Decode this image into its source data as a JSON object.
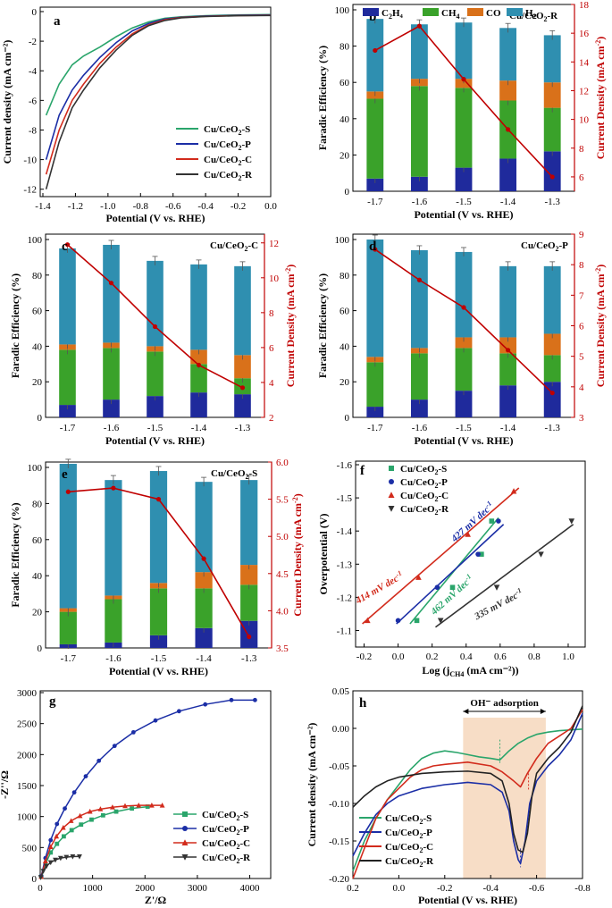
{
  "colors": {
    "c2h4": "#1f2a9c",
    "ch4": "#3aa22a",
    "co": "#d9711a",
    "h2": "#2f8fb0",
    "red": "#c00000",
    "s": "#2aa56b",
    "p": "#1b2ea6",
    "c": "#d22b1c",
    "r": "#333333",
    "shade": "#f7ddc6"
  },
  "chart_data": [
    {
      "id": "a",
      "type": "line",
      "label": "a",
      "xlabel": "Potential (V vs. RHE)",
      "ylabel": "Current density (mA cm⁻²)",
      "xlim": [
        -1.4,
        0.0
      ],
      "ylim": [
        -12.5,
        0.3
      ],
      "xticks": [
        -1.4,
        -1.2,
        -1.0,
        -0.8,
        -0.6,
        -0.4,
        -0.2,
        0.0
      ],
      "yticks": [
        0,
        -2,
        -4,
        -6,
        -8,
        -10,
        -12
      ],
      "legend": [
        "Cu/CeO₂-S",
        "Cu/CeO₂-P",
        "Cu/CeO₂-C",
        "Cu/CeO₂-R"
      ],
      "series": [
        {
          "name": "Cu/CeO₂-S",
          "color": "#2aa56b",
          "x": [
            -1.38,
            -1.3,
            -1.22,
            -1.15,
            -1.05,
            -0.95,
            -0.85,
            -0.75,
            -0.65,
            -0.55,
            -0.4,
            -0.2,
            0.0
          ],
          "y": [
            -7.0,
            -4.9,
            -3.6,
            -3.0,
            -2.4,
            -1.7,
            -1.1,
            -0.7,
            -0.45,
            -0.35,
            -0.28,
            -0.22,
            -0.2
          ]
        },
        {
          "name": "Cu/CeO₂-P",
          "color": "#1b2ea6",
          "x": [
            -1.38,
            -1.3,
            -1.22,
            -1.15,
            -1.05,
            -0.95,
            -0.85,
            -0.75,
            -0.65,
            -0.55,
            -0.4,
            -0.2,
            0.0
          ],
          "y": [
            -10.0,
            -7.0,
            -5.3,
            -4.3,
            -3.1,
            -2.1,
            -1.3,
            -0.8,
            -0.5,
            -0.38,
            -0.3,
            -0.25,
            -0.22
          ]
        },
        {
          "name": "Cu/CeO₂-C",
          "color": "#d22b1c",
          "x": [
            -1.38,
            -1.3,
            -1.22,
            -1.15,
            -1.05,
            -0.95,
            -0.85,
            -0.75,
            -0.65,
            -0.55,
            -0.4,
            -0.2,
            0.0
          ],
          "y": [
            -11.0,
            -8.0,
            -6.0,
            -4.9,
            -3.5,
            -2.4,
            -1.5,
            -0.9,
            -0.55,
            -0.4,
            -0.32,
            -0.27,
            -0.25
          ]
        },
        {
          "name": "Cu/CeO₂-R",
          "color": "#333333",
          "x": [
            -1.38,
            -1.3,
            -1.22,
            -1.15,
            -1.05,
            -0.95,
            -0.85,
            -0.75,
            -0.65,
            -0.55,
            -0.4,
            -0.2,
            0.0
          ],
          "y": [
            -12.0,
            -8.8,
            -6.5,
            -5.3,
            -3.8,
            -2.6,
            -1.6,
            -0.95,
            -0.6,
            -0.42,
            -0.33,
            -0.28,
            -0.26
          ]
        }
      ]
    },
    {
      "id": "b",
      "type": "bar",
      "label": "b",
      "title": "Cu/CeO₂-R",
      "categories": [
        "-1.7",
        "-1.6",
        "-1.5",
        "-1.4",
        "-1.3"
      ],
      "xlabel": "Potential (V vs. RHE)",
      "ylabel": "Faradic Efficiency (%)",
      "y2label": "Current Density (mA cm⁻²)",
      "ylim": [
        0,
        100
      ],
      "yticks": [
        0,
        20,
        40,
        60,
        80,
        100
      ],
      "y2lim": [
        5,
        18
      ],
      "y2ticks": [
        6,
        8,
        10,
        12,
        14,
        16,
        18
      ],
      "legend": [
        "C₂H₄",
        "CH₄",
        "CO",
        "H₂"
      ],
      "series": [
        {
          "name": "C₂H₄",
          "values": [
            7,
            8,
            13,
            18,
            22
          ]
        },
        {
          "name": "CH₄",
          "values": [
            44,
            50,
            44,
            32,
            24
          ]
        },
        {
          "name": "CO",
          "values": [
            4,
            4,
            5,
            11,
            14
          ]
        },
        {
          "name": "H₂",
          "values": [
            40,
            30,
            31,
            29,
            26
          ]
        }
      ],
      "current": [
        14.8,
        16.5,
        12.8,
        9.3,
        6.0
      ]
    },
    {
      "id": "c",
      "type": "bar",
      "label": "c",
      "title": "Cu/CeO₂-C",
      "categories": [
        "-1.7",
        "-1.6",
        "-1.5",
        "-1.4",
        "-1.3"
      ],
      "xlabel": "Potential (V vs. RHE)",
      "ylabel": "Faradic Efficiency (%)",
      "y2label": "Current Density (mA cm⁻²)",
      "ylim": [
        0,
        100
      ],
      "yticks": [
        0,
        20,
        40,
        60,
        80,
        100
      ],
      "y2lim": [
        2,
        12.5
      ],
      "y2ticks": [
        2,
        4,
        6,
        8,
        10,
        12
      ],
      "series": [
        {
          "name": "C₂H₄",
          "values": [
            7,
            10,
            12,
            14,
            13
          ]
        },
        {
          "name": "CH₄",
          "values": [
            31,
            29,
            25,
            16,
            9
          ]
        },
        {
          "name": "CO",
          "values": [
            3,
            3,
            3,
            8,
            13
          ]
        },
        {
          "name": "H₂",
          "values": [
            54,
            55,
            48,
            48,
            50
          ]
        }
      ],
      "current": [
        11.9,
        9.7,
        7.2,
        5.0,
        3.7
      ]
    },
    {
      "id": "d",
      "type": "bar",
      "label": "d",
      "title": "Cu/CeO₂-P",
      "categories": [
        "-1.7",
        "-1.6",
        "-1.5",
        "-1.4",
        "-1.3"
      ],
      "xlabel": "Potential (V vs. RHE)",
      "ylabel": "Faradic Efficiency (%)",
      "y2label": "Current Density (mA cm⁻²)",
      "ylim": [
        0,
        100
      ],
      "yticks": [
        0,
        20,
        40,
        60,
        80,
        100
      ],
      "y2lim": [
        3,
        9
      ],
      "y2ticks": [
        3,
        4,
        5,
        6,
        7,
        8,
        9
      ],
      "series": [
        {
          "name": "C₂H₄",
          "values": [
            6,
            10,
            15,
            18,
            20
          ]
        },
        {
          "name": "CH₄",
          "values": [
            25,
            26,
            24,
            18,
            15
          ]
        },
        {
          "name": "CO",
          "values": [
            3,
            3,
            6,
            9,
            12
          ]
        },
        {
          "name": "H₂",
          "values": [
            66,
            55,
            48,
            40,
            38
          ]
        }
      ],
      "current": [
        8.5,
        7.5,
        6.6,
        5.2,
        3.8
      ]
    },
    {
      "id": "e",
      "type": "bar",
      "label": "e",
      "title": "Cu/CeO₂-S",
      "categories": [
        "-1.7",
        "-1.6",
        "-1.5",
        "-1.4",
        "-1.3"
      ],
      "xlabel": "Potential (V vs. RHE)",
      "ylabel": "Faradic Efficiency (%)",
      "y2label": "Current Density (mA cm⁻²)",
      "ylim": [
        0,
        100
      ],
      "yticks": [
        0,
        20,
        40,
        60,
        80,
        100
      ],
      "y2lim": [
        3.5,
        6.0
      ],
      "y2ticks": [
        3.5,
        4.0,
        4.5,
        5.0,
        5.5,
        6.0
      ],
      "series": [
        {
          "name": "C₂H₄",
          "values": [
            2,
            3,
            7,
            11,
            15
          ]
        },
        {
          "name": "CH₄",
          "values": [
            18,
            24,
            26,
            22,
            20
          ]
        },
        {
          "name": "CO",
          "values": [
            2,
            2,
            3,
            9,
            11
          ]
        },
        {
          "name": "H₂",
          "values": [
            80,
            64,
            62,
            50,
            47
          ]
        }
      ],
      "current": [
        5.6,
        5.65,
        5.5,
        4.7,
        3.65
      ]
    },
    {
      "id": "f",
      "type": "scatter",
      "label": "f",
      "xlabel": "Log (j",
      "xlabel_sub": "CH4",
      "xlabel_end": " (mA cm⁻²))",
      "ylabel": "Overpotential (V)",
      "xlim": [
        -0.25,
        1.1
      ],
      "ylim": [
        -1.05,
        -1.6
      ],
      "xticks": [
        -0.2,
        0.0,
        0.2,
        0.4,
        0.6,
        0.8,
        1.0
      ],
      "yticks": [
        -1.1,
        -1.2,
        -1.3,
        -1.4,
        -1.5,
        -1.6
      ],
      "legend": [
        "Cu/CeO₂-S",
        "Cu/CeO₂-P",
        "Cu/CeO₂-C",
        "Cu/CeO₂-R"
      ],
      "series": [
        {
          "name": "Cu/CeO₂-S",
          "color": "#2aa56b",
          "marker": "square",
          "x": [
            0.11,
            0.32,
            0.49,
            0.55
          ],
          "y": [
            -1.13,
            -1.23,
            -1.33,
            -1.43
          ],
          "fit": [
            [
              0.07,
              -1.12
            ],
            [
              0.59,
              -1.44
            ]
          ],
          "slope": "462 mV dec⁻¹"
        },
        {
          "name": "Cu/CeO₂-P",
          "color": "#1b2ea6",
          "marker": "circle",
          "x": [
            0.0,
            0.23,
            0.47,
            0.59
          ],
          "y": [
            -1.13,
            -1.23,
            -1.33,
            -1.43
          ],
          "fit": [
            [
              -0.01,
              -1.12
            ],
            [
              0.62,
              -1.42
            ]
          ],
          "slope": "427 mV dec⁻¹"
        },
        {
          "name": "Cu/CeO₂-C",
          "color": "#d22b1c",
          "marker": "triangle",
          "x": [
            -0.18,
            0.12,
            0.41,
            0.68
          ],
          "y": [
            -1.13,
            -1.26,
            -1.39,
            -1.52
          ],
          "fit": [
            [
              -0.21,
              -1.12
            ],
            [
              0.71,
              -1.53
            ]
          ],
          "slope": "414 mV dec⁻¹"
        },
        {
          "name": "Cu/CeO₂-R",
          "color": "#333333",
          "marker": "tri-down",
          "x": [
            0.25,
            0.58,
            0.84,
            1.02
          ],
          "y": [
            -1.13,
            -1.23,
            -1.33,
            -1.43
          ],
          "fit": [
            [
              0.22,
              -1.11
            ],
            [
              1.03,
              -1.42
            ]
          ],
          "slope": "335 mV dec⁻¹"
        }
      ]
    },
    {
      "id": "g",
      "type": "line",
      "label": "g",
      "xlabel": "Z'/Ω",
      "ylabel": "-Z''/Ω",
      "xlim": [
        0,
        4400
      ],
      "ylim": [
        0,
        3000
      ],
      "xticks": [
        0,
        1000,
        2000,
        3000,
        4000
      ],
      "yticks": [
        0,
        500,
        1000,
        1500,
        2000,
        2500,
        3000
      ],
      "legend": [
        "Cu/CeO₂-S",
        "Cu/CeO₂-P",
        "Cu/CeO₂-C",
        "Cu/CeO₂-R"
      ],
      "series": [
        {
          "name": "Cu/CeO₂-S",
          "color": "#2aa56b",
          "marker": "square",
          "x": [
            20,
            100,
            200,
            320,
            450,
            600,
            780,
            980,
            1200,
            1450,
            1750,
            2050
          ],
          "y": [
            30,
            230,
            420,
            560,
            680,
            780,
            870,
            950,
            1020,
            1080,
            1130,
            1160
          ]
        },
        {
          "name": "Cu/CeO₂-P",
          "color": "#1b2ea6",
          "marker": "circle",
          "x": [
            20,
            100,
            200,
            320,
            470,
            650,
            870,
            1120,
            1420,
            1780,
            2200,
            2650,
            3150,
            3650,
            4100
          ],
          "y": [
            40,
            330,
            620,
            880,
            1130,
            1390,
            1650,
            1900,
            2140,
            2360,
            2550,
            2700,
            2810,
            2880,
            2880
          ]
        },
        {
          "name": "Cu/CeO₂-C",
          "color": "#d22b1c",
          "marker": "triangle",
          "x": [
            20,
            100,
            200,
            310,
            440,
            590,
            760,
            950,
            1150,
            1380,
            1620,
            1880,
            2130,
            2330
          ],
          "y": [
            30,
            280,
            510,
            680,
            820,
            930,
            1010,
            1080,
            1120,
            1150,
            1170,
            1180,
            1180,
            1180
          ]
        },
        {
          "name": "Cu/CeO₂-R",
          "color": "#333333",
          "marker": "tri-down",
          "x": [
            10,
            60,
            120,
            200,
            290,
            390,
            500,
            620,
            750
          ],
          "y": [
            20,
            120,
            200,
            260,
            300,
            330,
            345,
            355,
            355
          ]
        }
      ]
    },
    {
      "id": "h",
      "type": "line",
      "label": "h",
      "xlabel": "Potential (V vs. RHE)",
      "ylabel": "Current density (mA cm⁻²)",
      "xlim": [
        0.2,
        -0.8
      ],
      "ylim": [
        -0.2,
        0.05
      ],
      "xticks": [
        0.2,
        0.0,
        -0.2,
        -0.4,
        -0.6,
        -0.8
      ],
      "yticks": [
        0.05,
        0.0,
        -0.05,
        -0.1,
        -0.15,
        -0.2
      ],
      "annotation": "OH⁻ adsorption",
      "shade": [
        -0.28,
        -0.64
      ],
      "legend": [
        "Cu/CeO₂-S",
        "Cu/CeO₂-P",
        "Cu/CeO₂-C",
        "Cu/CeO₂-R"
      ],
      "series": [
        {
          "name": "Cu/CeO₂-S",
          "color": "#2aa56b",
          "x": [
            0.2,
            0.15,
            0.1,
            0.05,
            0.0,
            -0.05,
            -0.1,
            -0.15,
            -0.2,
            -0.25,
            -0.3,
            -0.35,
            -0.4,
            -0.44,
            -0.48,
            -0.52,
            -0.56,
            -0.6,
            -0.65,
            -0.7,
            -0.75,
            -0.8
          ],
          "y": [
            -0.19,
            -0.15,
            -0.12,
            -0.095,
            -0.075,
            -0.055,
            -0.04,
            -0.033,
            -0.03,
            -0.032,
            -0.035,
            -0.038,
            -0.04,
            -0.042,
            -0.03,
            -0.02,
            -0.013,
            -0.008,
            -0.005,
            -0.003,
            -0.002,
            -0.001
          ]
        },
        {
          "name": "Cu/CeO₂-P",
          "color": "#1b2ea6",
          "x": [
            0.2,
            0.15,
            0.1,
            0.05,
            0.0,
            -0.1,
            -0.2,
            -0.3,
            -0.4,
            -0.45,
            -0.48,
            -0.5,
            -0.52,
            -0.53,
            -0.55,
            -0.57,
            -0.6,
            -0.65,
            -0.7,
            -0.75,
            -0.8
          ],
          "y": [
            -0.17,
            -0.14,
            -0.115,
            -0.1,
            -0.09,
            -0.08,
            -0.075,
            -0.072,
            -0.075,
            -0.085,
            -0.11,
            -0.15,
            -0.175,
            -0.18,
            -0.15,
            -0.1,
            -0.07,
            -0.05,
            -0.035,
            -0.015,
            0.02
          ]
        },
        {
          "name": "Cu/CeO₂-C",
          "color": "#d22b1c",
          "x": [
            0.2,
            0.15,
            0.1,
            0.05,
            0.0,
            -0.05,
            -0.1,
            -0.15,
            -0.2,
            -0.3,
            -0.4,
            -0.45,
            -0.5,
            -0.53,
            -0.56,
            -0.6,
            -0.65,
            -0.7,
            -0.75,
            -0.8
          ],
          "y": [
            -0.2,
            -0.16,
            -0.12,
            -0.095,
            -0.08,
            -0.065,
            -0.055,
            -0.05,
            -0.048,
            -0.045,
            -0.05,
            -0.058,
            -0.07,
            -0.078,
            -0.06,
            -0.04,
            -0.02,
            -0.01,
            0.0,
            0.025
          ]
        },
        {
          "name": "Cu/CeO₂-R",
          "color": "#222222",
          "x": [
            0.2,
            0.15,
            0.1,
            0.05,
            0.0,
            -0.1,
            -0.2,
            -0.3,
            -0.4,
            -0.45,
            -0.48,
            -0.5,
            -0.52,
            -0.54,
            -0.56,
            -0.58,
            -0.6,
            -0.65,
            -0.7,
            -0.75,
            -0.8
          ],
          "y": [
            -0.105,
            -0.09,
            -0.078,
            -0.07,
            -0.065,
            -0.06,
            -0.058,
            -0.057,
            -0.06,
            -0.07,
            -0.1,
            -0.14,
            -0.162,
            -0.165,
            -0.14,
            -0.09,
            -0.06,
            -0.04,
            -0.025,
            -0.005,
            0.03
          ]
        }
      ]
    }
  ]
}
